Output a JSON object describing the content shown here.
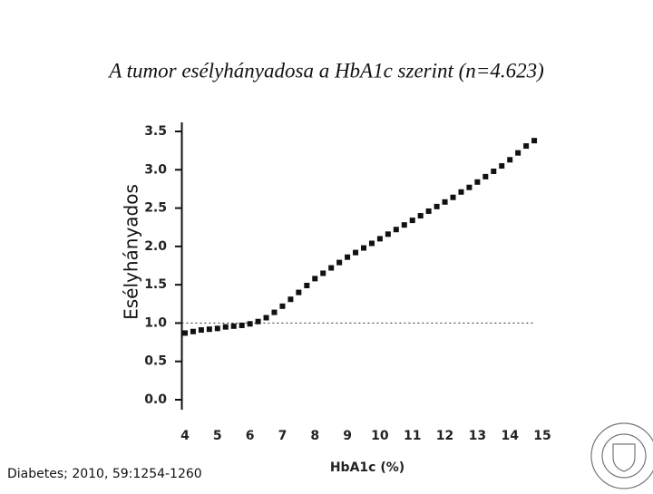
{
  "chart_data": {
    "type": "scatter",
    "title": "A tumor esélyhányadosa a HbA1c szerint (n=4.623)",
    "ylabel": "Esélyhányados",
    "xlabel": "HbA1c (%)",
    "source": "Diabetes; 2010, 59:1254-1260",
    "color": "#111111",
    "reference_line": 1,
    "x": [
      4.0,
      4.25,
      4.5,
      4.75,
      5.0,
      5.25,
      5.5,
      5.75,
      6.0,
      6.25,
      6.5,
      6.75,
      7.0,
      7.25,
      7.5,
      7.75,
      8.0,
      8.25,
      8.5,
      8.75,
      9.0,
      9.25,
      9.5,
      9.75,
      10.0,
      10.25,
      10.5,
      10.75,
      11.0,
      11.25,
      11.5,
      11.75,
      12.0,
      12.25,
      12.5,
      12.75,
      13.0,
      13.25,
      13.5,
      13.75,
      14.0,
      14.25,
      14.5,
      14.75
    ],
    "values": [
      0.87,
      0.89,
      0.91,
      0.92,
      0.93,
      0.95,
      0.96,
      0.97,
      0.99,
      1.02,
      1.07,
      1.14,
      1.22,
      1.31,
      1.4,
      1.49,
      1.58,
      1.65,
      1.72,
      1.79,
      1.86,
      1.92,
      1.98,
      2.04,
      2.1,
      2.16,
      2.22,
      2.28,
      2.34,
      2.4,
      2.46,
      2.52,
      2.58,
      2.64,
      2.71,
      2.77,
      2.84,
      2.91,
      2.98,
      3.05,
      3.13,
      3.22,
      3.31,
      3.38
    ],
    "xlim": [
      3.9,
      15.1
    ],
    "xticks": [
      4,
      5,
      6,
      7,
      8,
      9,
      10,
      11,
      12,
      13,
      14,
      15
    ],
    "ylim": [
      0,
      3.5
    ],
    "yticks": [
      {
        "value": 0,
        "label": "0.0"
      },
      0.5,
      {
        "value": 1,
        "label": "1.0"
      },
      1.5,
      {
        "value": 2,
        "label": "2.0"
      },
      2.5,
      {
        "value": 3,
        "label": "3.0"
      },
      3.5
    ]
  }
}
